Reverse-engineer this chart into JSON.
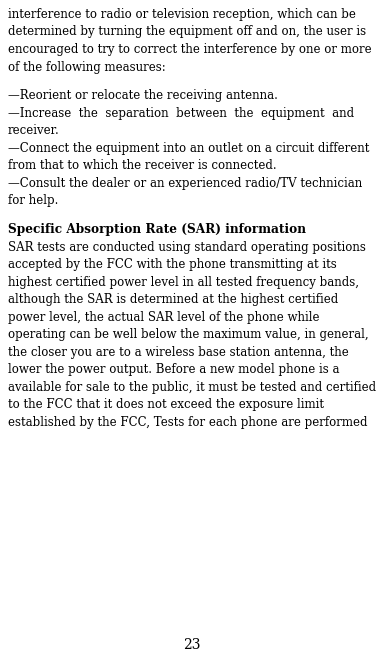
{
  "background_color": "#ffffff",
  "text_color": "#000000",
  "page_number": "23",
  "font_size_body": 8.5,
  "font_size_heading": 8.7,
  "font_size_page_num": 10.0,
  "lines_p1": [
    "interference to radio or television reception, which can be",
    "determined by turning the equipment off and on, the user is",
    "encouraged to try to correct the interference by one or more",
    "of the following measures:"
  ],
  "bullet_lines": [
    "—Reorient or relocate the receiving antenna.",
    "—Increase  the  separation  between  the  equipment  and",
    "receiver.",
    "—Connect the equipment into an outlet on a circuit different",
    "from that to which the receiver is connected.",
    "—Consult the dealer or an experienced radio/TV technician",
    "for help."
  ],
  "heading": "Specific Absorption Rate (SAR) information",
  "lines_p2": [
    "SAR tests are conducted using standard operating positions",
    "accepted by the FCC with the phone transmitting at its",
    "highest certified power level in all tested frequency bands,",
    "although the SAR is determined at the highest certified",
    "power level, the actual SAR level of the phone while",
    "operating can be well below the maximum value, in general,",
    "the closer you are to a wireless base station antenna, the",
    "lower the power output. Before a new model phone is a",
    "available for sale to the public, it must be tested and certified",
    "to the FCC that it does not exceed the exposure limit",
    "established by the FCC, Tests for each phone are performed"
  ]
}
